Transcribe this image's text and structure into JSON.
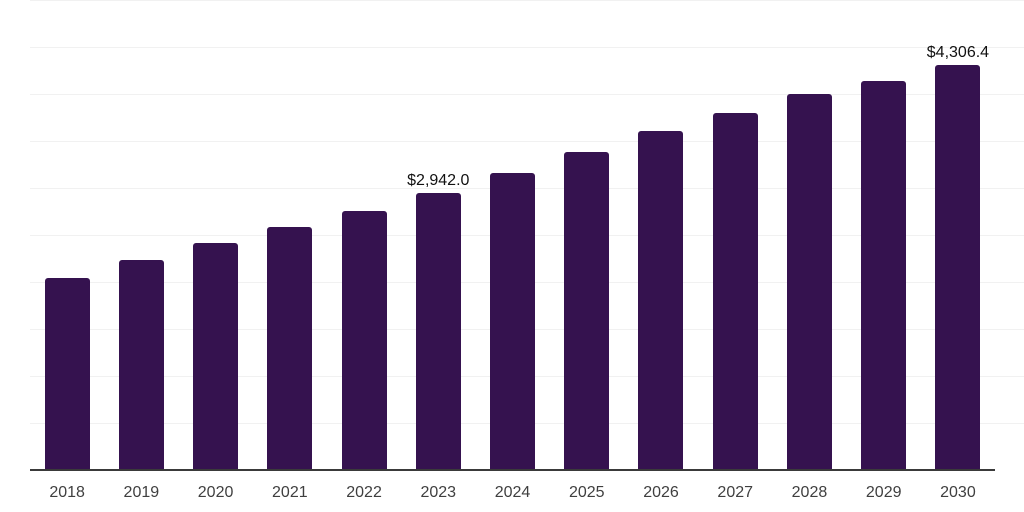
{
  "chart_data": {
    "type": "bar",
    "title": "",
    "xlabel": "",
    "ylabel": "",
    "categories": [
      "2018",
      "2019",
      "2020",
      "2021",
      "2022",
      "2023",
      "2024",
      "2025",
      "2026",
      "2027",
      "2028",
      "2029",
      "2030"
    ],
    "values": [
      2045,
      2235,
      2420,
      2590,
      2755,
      2942.0,
      3165,
      3385,
      3605,
      3800,
      3995,
      4140,
      4306.4
    ],
    "data_labels": [
      null,
      null,
      null,
      null,
      null,
      "$2,942.0",
      null,
      null,
      null,
      null,
      null,
      null,
      "$4,306.4"
    ],
    "ylim": [
      0,
      5000
    ],
    "gridline_step": 500,
    "grid": true,
    "legend": false,
    "colors": {
      "bar": "#35124f",
      "gridline": "#f1f1f1",
      "axis_line": "#3a3a3a",
      "tick_label": "#3f3f3f",
      "data_label": "#111111",
      "background": "#ffffff"
    }
  }
}
